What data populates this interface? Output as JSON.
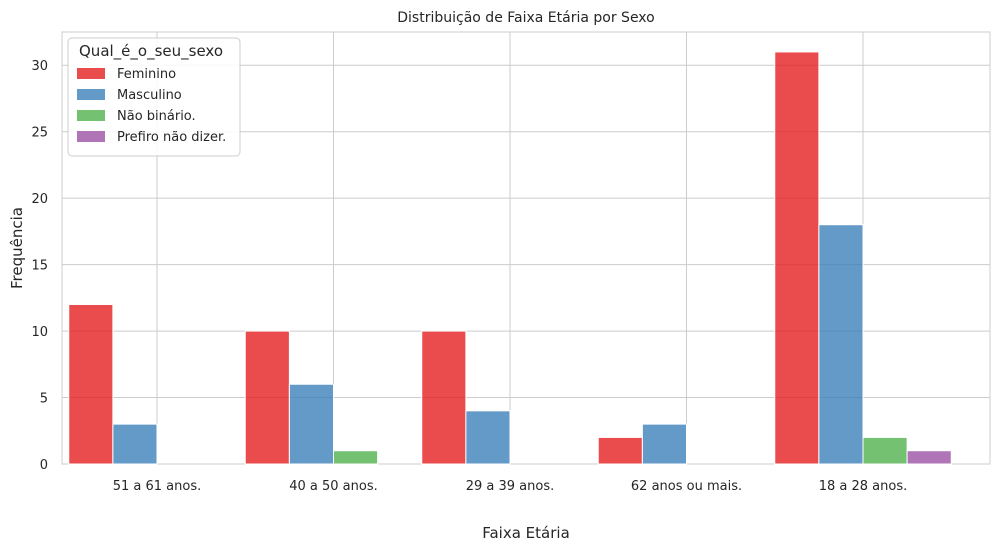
{
  "chart_data": {
    "type": "bar",
    "title": "Distribuição de Faixa Etária por Sexo",
    "xlabel": "Faixa Etária",
    "ylabel": "Frequência",
    "ylim": [
      0,
      32.5
    ],
    "yticks": [
      0,
      5,
      10,
      15,
      20,
      25,
      30
    ],
    "grid": true,
    "legend_title": "Qual_é_o_seu_sexo",
    "legend_position": "top-left",
    "categories": [
      "51 a 61 anos.",
      "40 a 50 anos.",
      "29 a 39 anos.",
      "62 anos ou mais.",
      "18 a 28 anos."
    ],
    "series": [
      {
        "name": "Feminino",
        "color": "#e41a1c",
        "values": [
          12,
          10,
          10,
          2,
          31
        ]
      },
      {
        "name": "Masculino",
        "color": "#377eb8",
        "values": [
          3,
          6,
          4,
          3,
          18
        ]
      },
      {
        "name": "Não binário.",
        "color": "#4daf4a",
        "values": [
          0,
          1,
          0,
          0,
          2
        ]
      },
      {
        "name": "Prefiro não dizer.",
        "color": "#984ea3",
        "values": [
          0,
          0,
          0,
          0,
          1
        ]
      }
    ]
  }
}
